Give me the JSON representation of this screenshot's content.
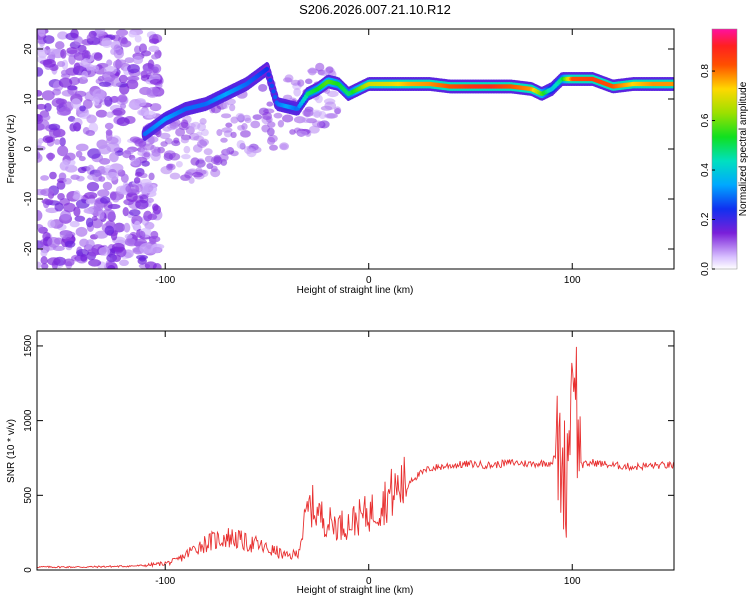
{
  "title": "S206.2026.007.21.10.R12",
  "chart_data": [
    {
      "type": "heatmap",
      "xlabel": "Height of straight line (km)",
      "ylabel": "Frequency (Hz)",
      "xlim": [
        -163,
        150
      ],
      "ylim": [
        -24,
        24
      ],
      "xticks": [
        -100,
        0,
        100
      ],
      "yticks": [
        -20,
        -10,
        0,
        10,
        20
      ],
      "colorbar": {
        "label": "Normalized spectral amplitude",
        "range": [
          0,
          0.97
        ],
        "ticks": [
          0.0,
          0.2,
          0.4,
          0.6,
          0.8
        ],
        "colormap": "rainbow (violet-blue-cyan-green-yellow-red-magenta)"
      },
      "ridge": {
        "description": "dominant frequency ridge",
        "x": [
          -110,
          -100,
          -90,
          -80,
          -70,
          -60,
          -50,
          -45,
          -40,
          -35,
          -30,
          -25,
          -20,
          -15,
          -10,
          -5,
          0,
          10,
          20,
          30,
          40,
          50,
          60,
          70,
          80,
          85,
          90,
          95,
          100,
          110,
          120,
          130,
          140,
          150
        ],
        "y": [
          3,
          6,
          8,
          9,
          11,
          13,
          16,
          9,
          8.5,
          8,
          11,
          12,
          13.5,
          13,
          11,
          12,
          13,
          13,
          13,
          13,
          12.5,
          12.5,
          12.5,
          12.5,
          12,
          11,
          12,
          14,
          14,
          14,
          12.5,
          13,
          13,
          13
        ],
        "amplitude": [
          0.3,
          0.35,
          0.3,
          0.3,
          0.35,
          0.3,
          0.25,
          0.3,
          0.35,
          0.3,
          0.5,
          0.55,
          0.6,
          0.55,
          0.5,
          0.6,
          0.7,
          0.72,
          0.78,
          0.8,
          0.85,
          0.9,
          0.92,
          0.85,
          0.8,
          0.6,
          0.4,
          0.5,
          0.85,
          0.88,
          0.85,
          0.75,
          0.8,
          0.8
        ]
      }
    },
    {
      "type": "line",
      "xlabel": "Height of straight line (km)",
      "ylabel": "SNR (10 * v/v)",
      "xlim": [
        -163,
        150
      ],
      "ylim": [
        0,
        1600
      ],
      "xticks": [
        -100,
        0,
        100
      ],
      "yticks": [
        0,
        500,
        1000,
        1500
      ],
      "color": "#e83030",
      "series": [
        {
          "x": [
            -163,
            -140,
            -120,
            -110,
            -100,
            -95,
            -90,
            -85,
            -80,
            -75,
            -70,
            -65,
            -60,
            -55,
            -50,
            -45,
            -40,
            -35,
            -32,
            -30,
            -28,
            -25,
            -20,
            -15,
            -10,
            -5,
            0,
            5,
            10,
            20,
            30,
            40,
            50,
            60,
            70,
            80,
            90,
            93,
            95,
            97,
            99,
            100,
            101,
            102,
            103,
            105,
            110,
            120,
            130,
            140,
            150
          ],
          "y": [
            20,
            20,
            25,
            30,
            45,
            60,
            100,
            150,
            180,
            200,
            220,
            210,
            180,
            170,
            140,
            120,
            90,
            110,
            280,
            400,
            430,
            380,
            320,
            300,
            310,
            350,
            380,
            420,
            500,
            600,
            680,
            700,
            710,
            700,
            720,
            710,
            720,
            800,
            700,
            600,
            1100,
            1300,
            1550,
            1200,
            800,
            700,
            720,
            700,
            690,
            700,
            700
          ]
        }
      ]
    }
  ]
}
